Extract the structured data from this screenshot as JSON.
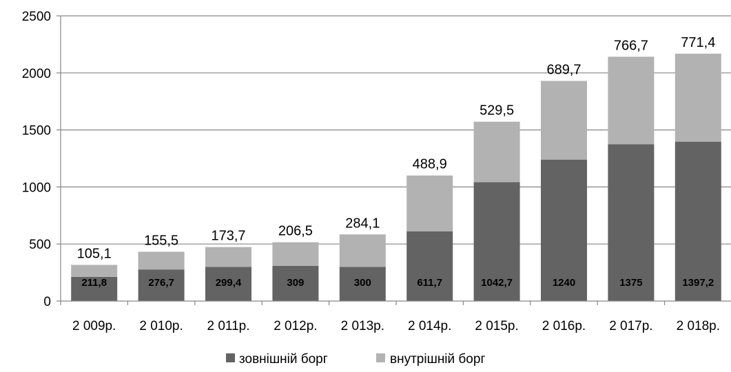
{
  "chart_data": {
    "type": "bar",
    "stacked": true,
    "categories": [
      "2 009р.",
      "2 010р.",
      "2 011р.",
      "2 012р.",
      "2 013р.",
      "2 014р.",
      "2 015р.",
      "2 016р.",
      "2 017р.",
      "2 018р."
    ],
    "series": [
      {
        "name": "зовнішній борг",
        "color": "#636363",
        "values": [
          211.8,
          276.7,
          299.4,
          309,
          300,
          611.7,
          1042.7,
          1240,
          1375,
          1397.2
        ],
        "labels": [
          "211,8",
          "276,7",
          "299,4",
          "309",
          "300",
          "611,7",
          "1042,7",
          "1240",
          "1375",
          "1397,2"
        ]
      },
      {
        "name": "внутрішній борг",
        "color": "#b2b2b2",
        "values": [
          105.1,
          155.5,
          173.7,
          206.5,
          284.1,
          488.9,
          529.5,
          689.7,
          766.7,
          771.4
        ],
        "labels": [
          "105,1",
          "155,5",
          "173,7",
          "206,5",
          "284,1",
          "488,9",
          "529,5",
          "689,7",
          "766,7",
          "771,4"
        ]
      }
    ],
    "yticks": [
      "0",
      "500",
      "1000",
      "1500",
      "2000",
      "2500"
    ],
    "ylim": [
      0,
      2500
    ],
    "grid": true,
    "legend": "bottom"
  }
}
